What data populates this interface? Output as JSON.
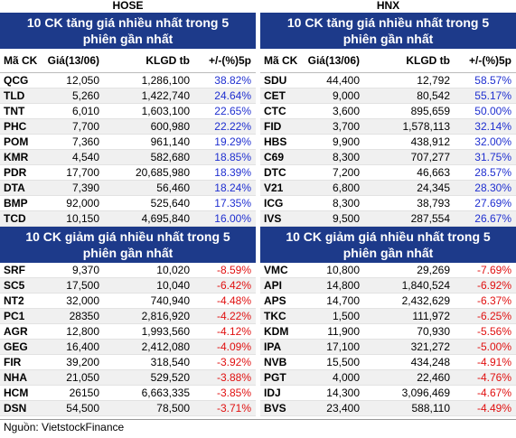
{
  "source": "Nguồn: VietstockFinance",
  "panels": [
    {
      "title": "HOSE",
      "gainers": {
        "title": "10 CK tăng giá nhiều nhất trong 5 phiên gần nhất",
        "headers": [
          "Mã CK",
          "Giá(13/06)",
          "KLGD tb",
          "+/-(%)5p"
        ],
        "rows": [
          [
            "QCG",
            "12,050",
            "1,286,100",
            "38.82%"
          ],
          [
            "TLD",
            "5,260",
            "1,422,740",
            "24.64%"
          ],
          [
            "TNT",
            "6,010",
            "1,603,100",
            "22.65%"
          ],
          [
            "PHC",
            "7,700",
            "600,980",
            "22.22%"
          ],
          [
            "POM",
            "7,360",
            "961,140",
            "19.29%"
          ],
          [
            "KMR",
            "4,540",
            "582,680",
            "18.85%"
          ],
          [
            "PDR",
            "17,700",
            "20,685,980",
            "18.39%"
          ],
          [
            "DTA",
            "7,390",
            "56,460",
            "18.24%"
          ],
          [
            "BMP",
            "92,000",
            "525,640",
            "17.35%"
          ],
          [
            "TCD",
            "10,150",
            "4,695,840",
            "16.00%"
          ]
        ]
      },
      "losers": {
        "title": "10 CK giảm giá nhiều nhất trong 5 phiên gần nhất",
        "rows": [
          [
            "SRF",
            "9,370",
            "10,020",
            "-8.59%"
          ],
          [
            "SC5",
            "17,500",
            "10,040",
            "-6.42%"
          ],
          [
            "NT2",
            "32,000",
            "740,940",
            "-4.48%"
          ],
          [
            "PC1",
            "28350",
            "2,816,920",
            "-4.22%"
          ],
          [
            "AGR",
            "12,800",
            "1,993,560",
            "-4.12%"
          ],
          [
            "GEG",
            "16,400",
            "2,412,080",
            "-4.09%"
          ],
          [
            "FIR",
            "39,200",
            "318,540",
            "-3.92%"
          ],
          [
            "NHA",
            "21,050",
            "529,520",
            "-3.88%"
          ],
          [
            "HCM",
            "26150",
            "6,663,335",
            "-3.85%"
          ],
          [
            "DSN",
            "54,500",
            "78,500",
            "-3.71%"
          ]
        ]
      }
    },
    {
      "title": "HNX",
      "gainers": {
        "title": "10 CK tăng giá nhiều nhất trong 5 phiên gần nhất",
        "headers": [
          "Mã CK",
          "Giá(13/06)",
          "KLGD tb",
          "+/-(%)5p"
        ],
        "rows": [
          [
            "SDU",
            "44,400",
            "12,792",
            "58.57%"
          ],
          [
            "CET",
            "9,000",
            "80,542",
            "55.17%"
          ],
          [
            "CTC",
            "3,600",
            "895,659",
            "50.00%"
          ],
          [
            "FID",
            "3,700",
            "1,578,113",
            "32.14%"
          ],
          [
            "HBS",
            "9,900",
            "438,912",
            "32.00%"
          ],
          [
            "C69",
            "8,300",
            "707,277",
            "31.75%"
          ],
          [
            "DTC",
            "7,200",
            "46,663",
            "28.57%"
          ],
          [
            "V21",
            "6,800",
            "24,345",
            "28.30%"
          ],
          [
            "ICG",
            "8,300",
            "38,793",
            "27.69%"
          ],
          [
            "IVS",
            "9,500",
            "287,554",
            "26.67%"
          ]
        ]
      },
      "losers": {
        "title": "10 CK giảm giá nhiều nhất trong 5 phiên gần nhất",
        "rows": [
          [
            "VMC",
            "10,800",
            "29,269",
            "-7.69%"
          ],
          [
            "API",
            "14,800",
            "1,840,524",
            "-6.92%"
          ],
          [
            "APS",
            "14,700",
            "2,432,629",
            "-6.37%"
          ],
          [
            "TKC",
            "1,500",
            "111,972",
            "-6.25%"
          ],
          [
            "KDM",
            "11,900",
            "70,930",
            "-5.56%"
          ],
          [
            "IPA",
            "17,100",
            "321,272",
            "-5.00%"
          ],
          [
            "NVB",
            "15,500",
            "434,248",
            "-4.91%"
          ],
          [
            "PGT",
            "4,000",
            "22,460",
            "-4.76%"
          ],
          [
            "IDJ",
            "14,300",
            "3,096,469",
            "-4.67%"
          ],
          [
            "BVS",
            "23,400",
            "588,110",
            "-4.49%"
          ]
        ]
      }
    }
  ]
}
